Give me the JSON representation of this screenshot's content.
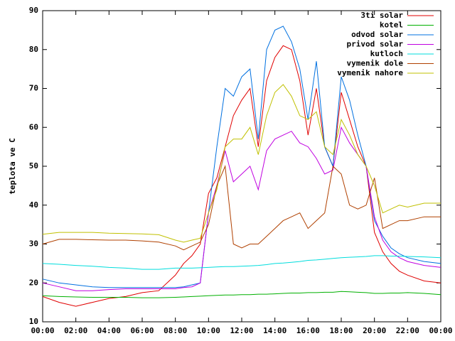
{
  "chart_data": {
    "type": "line",
    "y_label": "teplota ve C",
    "x": [
      0,
      1,
      2,
      3,
      4,
      5,
      6,
      7,
      8,
      8.5,
      9,
      9.5,
      10,
      10.5,
      11,
      11.5,
      12,
      12.5,
      13,
      13.5,
      14,
      14.5,
      15,
      15.5,
      16,
      16.5,
      17,
      17.5,
      18,
      18.5,
      19,
      19.5,
      20,
      20.5,
      21,
      21.5,
      22,
      23,
      24
    ],
    "xlim": [
      0,
      24
    ],
    "xticks": [
      {
        "value": 0,
        "label": "00:00"
      },
      {
        "value": 2,
        "label": "02:00"
      },
      {
        "value": 4,
        "label": "04:00"
      },
      {
        "value": 6,
        "label": "06:00"
      },
      {
        "value": 8,
        "label": "08:00"
      },
      {
        "value": 10,
        "label": "10:00"
      },
      {
        "value": 12,
        "label": "12:00"
      },
      {
        "value": 14,
        "label": "14:00"
      },
      {
        "value": 16,
        "label": "16:00"
      },
      {
        "value": 18,
        "label": "18:00"
      },
      {
        "value": 20,
        "label": "20:00"
      },
      {
        "value": 22,
        "label": "22:00"
      },
      {
        "value": 24,
        "label": "00:00"
      }
    ],
    "ylim": [
      10,
      90
    ],
    "yticks": [
      10,
      20,
      30,
      40,
      50,
      60,
      70,
      80,
      90
    ],
    "legend": "top-right",
    "series": [
      {
        "name": "3ti solar",
        "color": "#e00000",
        "values": [
          16.5,
          15,
          14,
          15,
          16,
          16.5,
          17.5,
          18,
          22,
          25,
          27,
          30,
          43,
          47,
          55,
          63,
          67,
          70,
          55,
          72,
          78,
          81,
          80,
          72,
          58,
          70,
          55,
          50,
          69,
          62,
          55,
          50,
          33,
          28,
          25,
          23,
          22,
          20.5,
          20
        ]
      },
      {
        "name": "kotel",
        "color": "#00b000",
        "values": [
          16.7,
          16.5,
          16.4,
          16.3,
          16.3,
          16.3,
          16.2,
          16.2,
          16.3,
          16.4,
          16.5,
          16.6,
          16.7,
          16.8,
          16.9,
          16.9,
          17,
          17,
          17.1,
          17.1,
          17.2,
          17.3,
          17.4,
          17.4,
          17.5,
          17.5,
          17.6,
          17.6,
          17.8,
          17.7,
          17.6,
          17.5,
          17.3,
          17.3,
          17.4,
          17.4,
          17.5,
          17.3,
          17
        ]
      },
      {
        "name": "odvod solar",
        "color": "#0070e0",
        "values": [
          21,
          20,
          19.5,
          19,
          18.8,
          18.8,
          18.8,
          18.8,
          18.8,
          19,
          19.5,
          20,
          38,
          55,
          70,
          68,
          73,
          75,
          57,
          80,
          85,
          86,
          82,
          75,
          62,
          77,
          55,
          50,
          73,
          67,
          58,
          50,
          36,
          32,
          29,
          27.5,
          26.5,
          25.5,
          25
        ]
      },
      {
        "name": "privod solar",
        "color": "#c000e0",
        "values": [
          20,
          19,
          18,
          18,
          18.3,
          18.5,
          18.5,
          18.5,
          18.5,
          18.8,
          19,
          20,
          38,
          45,
          54,
          46,
          48,
          50,
          44,
          54,
          57,
          58,
          59,
          56,
          55,
          52,
          48,
          49,
          60,
          56,
          53,
          50,
          37,
          31,
          28,
          26.5,
          25.5,
          24.5,
          24
        ]
      },
      {
        "name": "kutloch",
        "color": "#00dddd",
        "values": [
          25,
          24.8,
          24.5,
          24.3,
          24,
          23.8,
          23.5,
          23.5,
          23.8,
          23.8,
          23.8,
          23.9,
          24,
          24.1,
          24.2,
          24.2,
          24.3,
          24.4,
          24.5,
          24.7,
          25,
          25.1,
          25.3,
          25.5,
          25.8,
          25.9,
          26.1,
          26.3,
          26.5,
          26.6,
          26.7,
          26.8,
          27,
          27,
          26.9,
          26.9,
          26.8,
          26.7,
          26.5
        ]
      },
      {
        "name": "vymenik dole",
        "color": "#b04000",
        "values": [
          30,
          31.2,
          31.2,
          31.1,
          31,
          31,
          30.8,
          30.5,
          29.5,
          28.5,
          29.5,
          30.5,
          35,
          45,
          50,
          30,
          29,
          30,
          30,
          32,
          34,
          36,
          37,
          38,
          34,
          36,
          38,
          50,
          48,
          40,
          39,
          40,
          47,
          34,
          35,
          36,
          36,
          37,
          37
        ]
      },
      {
        "name": "vymenik nahore",
        "color": "#c0c000",
        "values": [
          32.5,
          33,
          33,
          33,
          32.8,
          32.7,
          32.6,
          32.4,
          31,
          30.5,
          31,
          31.5,
          38,
          44,
          55,
          57,
          57,
          60,
          53,
          63,
          69,
          71,
          68,
          63,
          62,
          64,
          55,
          53,
          62,
          58,
          53,
          50,
          45,
          38,
          39,
          40,
          39.5,
          40.5,
          40.5
        ]
      }
    ]
  }
}
